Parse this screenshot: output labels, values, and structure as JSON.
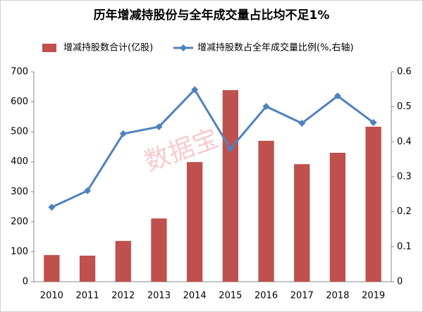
{
  "chart_data": {
    "type": "bar-line",
    "title": "历年增减持股份与全年成交量占比均不足1%",
    "watermark": "数据宝",
    "categories": [
      "2010",
      "2011",
      "2012",
      "2013",
      "2014",
      "2015",
      "2016",
      "2017",
      "2018",
      "2019"
    ],
    "series": [
      {
        "name": "增减持股数合计(亿股)",
        "type": "bar",
        "color": "#c0504d",
        "values": [
          89,
          87,
          136,
          211,
          399,
          639,
          470,
          392,
          430,
          517
        ]
      },
      {
        "name": "增减持股数占全年成交量比例(%,右轴)",
        "type": "line",
        "axis": "y2",
        "color": "#4f81bd",
        "values": [
          0.213,
          0.26,
          0.423,
          0.443,
          0.549,
          0.38,
          0.501,
          0.453,
          0.531,
          0.455
        ]
      }
    ],
    "ylim": [
      0,
      700
    ],
    "yticks": [
      0,
      100,
      200,
      300,
      400,
      500,
      600,
      700
    ],
    "y2lim": [
      0,
      0.6
    ],
    "y2ticks": [
      0,
      0.1,
      0.2,
      0.3,
      0.4,
      0.5,
      0.6
    ],
    "legend": "top"
  }
}
